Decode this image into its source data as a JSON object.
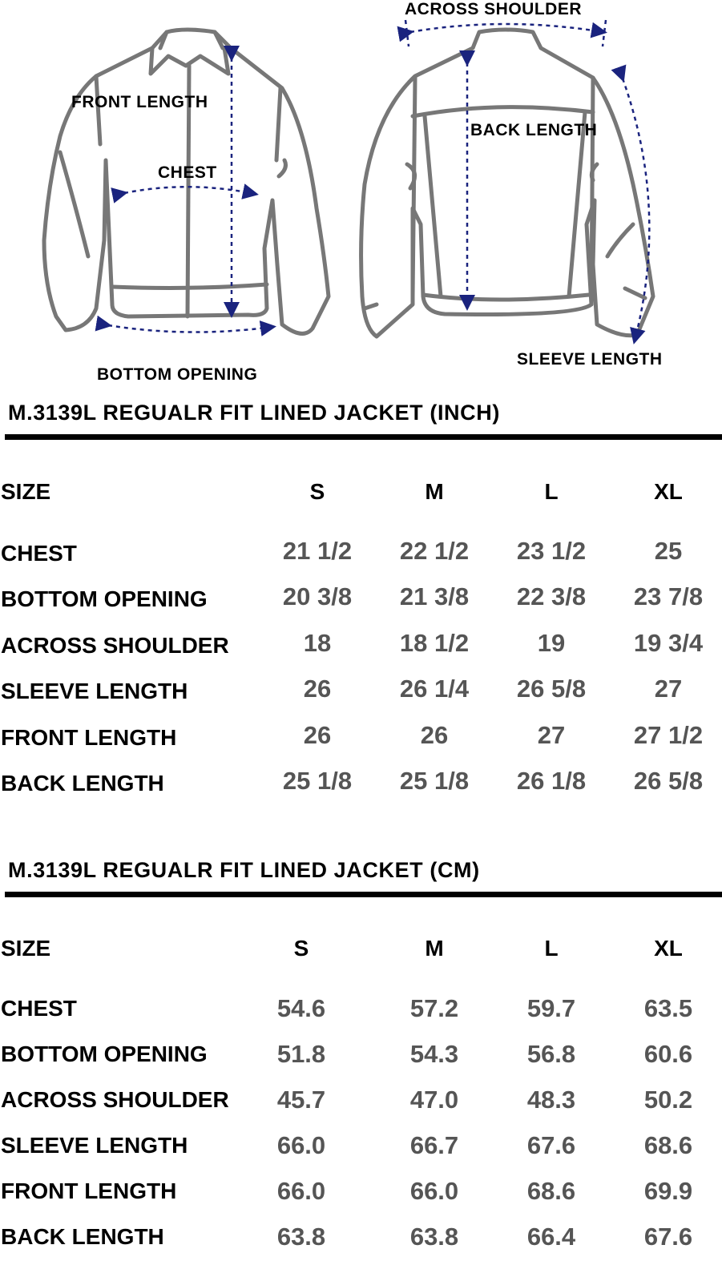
{
  "diagram": {
    "labels": {
      "front_length": "FRONT LENGTH",
      "chest": "CHEST",
      "bottom_opening": "BOTTOM OPENING",
      "across_shoulder": "ACROSS SHOULDER",
      "back_length": "BACK LENGTH",
      "sleeve_length": "SLEEVE LENGTH"
    },
    "colors": {
      "outline": "#777777",
      "arrow": "#1a237e"
    }
  },
  "tables": [
    {
      "title": "M.3139L REGUALR FIT LINED JACKET (INCH)",
      "header": {
        "label": "SIZE",
        "sizes": [
          "S",
          "M",
          "L",
          "XL"
        ]
      },
      "rows": [
        {
          "label": "CHEST",
          "values": [
            "21 1/2",
            "22 1/2",
            "23 1/2",
            "25"
          ]
        },
        {
          "label": "BOTTOM OPENING",
          "values": [
            "20 3/8",
            "21 3/8",
            "22 3/8",
            "23 7/8"
          ]
        },
        {
          "label": "ACROSS SHOULDER",
          "values": [
            "18",
            "18 1/2",
            "19",
            "19 3/4"
          ]
        },
        {
          "label": "SLEEVE LENGTH",
          "values": [
            "26",
            "26 1/4",
            "26 5/8",
            "27"
          ]
        },
        {
          "label": "FRONT LENGTH",
          "values": [
            "26",
            "26",
            "27",
            "27 1/2"
          ]
        },
        {
          "label": "BACK LENGTH",
          "values": [
            "25 1/8",
            "25 1/8",
            "26 1/8",
            "26 5/8"
          ]
        }
      ]
    },
    {
      "title": "M.3139L REGUALR FIT LINED JACKET (CM)",
      "header": {
        "label": "SIZE",
        "sizes": [
          "S",
          "M",
          "L",
          "XL"
        ]
      },
      "rows": [
        {
          "label": "CHEST",
          "values": [
            "54.6",
            "57.2",
            "59.7",
            "63.5"
          ]
        },
        {
          "label": "BOTTOM OPENING",
          "values": [
            "51.8",
            "54.3",
            "56.8",
            "60.6"
          ]
        },
        {
          "label": "ACROSS SHOULDER",
          "values": [
            "45.7",
            "47.0",
            "48.3",
            "50.2"
          ]
        },
        {
          "label": "SLEEVE LENGTH",
          "values": [
            "66.0",
            "66.7",
            "67.6",
            "68.6"
          ]
        },
        {
          "label": "FRONT LENGTH",
          "values": [
            "66.0",
            "66.0",
            "68.6",
            "69.9"
          ]
        },
        {
          "label": "BACK LENGTH",
          "values": [
            "63.8",
            "63.8",
            "66.4",
            "67.6"
          ]
        }
      ]
    }
  ]
}
